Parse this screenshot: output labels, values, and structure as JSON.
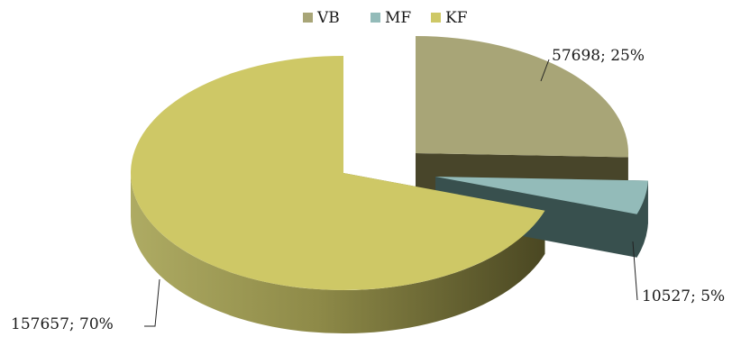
{
  "chart_data": {
    "type": "pie",
    "style": "3d-exploded",
    "legend_position": "top",
    "series": [
      {
        "name": "",
        "slices": [
          {
            "label": "VB",
            "value": 57698,
            "percent": 25,
            "data_label": "57698; 25%",
            "color": "#a8a577",
            "side_color": "#48452a"
          },
          {
            "label": "MF",
            "value": 10527,
            "percent": 5,
            "data_label": "10527; 5%",
            "color": "#93bbb9",
            "side_color": "#38504e"
          },
          {
            "label": "KF",
            "value": 157657,
            "percent": 70,
            "data_label": "157657; 70%",
            "color": "#cec866",
            "side_color": "#6b6832"
          }
        ]
      }
    ]
  }
}
